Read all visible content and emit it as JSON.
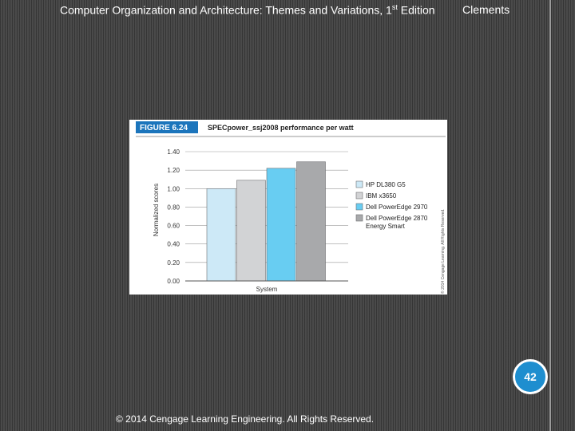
{
  "header": {
    "title_prefix": "Computer Organization and Architecture: Themes and Variations, 1",
    "title_sup": "st",
    "title_suffix": " Edition",
    "author": "Clements"
  },
  "page_number": "42",
  "footer": "© 2014 Cengage Learning Engineering. All Rights Reserved.",
  "figure": {
    "label": "FIGURE 6.24",
    "credit": "© 2014 Cengage Learning. All Rights Reserved."
  },
  "colors": {
    "badge": "#1e8ecf",
    "figure_label_bg": "#1c75bc"
  },
  "chart_data": {
    "type": "bar",
    "title": "SPECpower_ssj2008 performance per watt",
    "xlabel": "System",
    "ylabel": "Normalized scores",
    "ylim": [
      0,
      1.4
    ],
    "yticks": [
      "0.00",
      "0.20",
      "0.40",
      "0.60",
      "0.80",
      "1.00",
      "1.20",
      "1.40"
    ],
    "legend_position": "right",
    "series": [
      {
        "name": "HP DL380 G5",
        "value": 1.0,
        "color": "#cde9f7"
      },
      {
        "name": "IBM x3650",
        "value": 1.09,
        "color": "#d2d3d5"
      },
      {
        "name": "Dell PowerEdge 2970",
        "value": 1.22,
        "color": "#68cdf2"
      },
      {
        "name": "Dell PowerEdge 2870 Energy Smart",
        "value": 1.29,
        "color": "#a8a9ab"
      }
    ]
  }
}
